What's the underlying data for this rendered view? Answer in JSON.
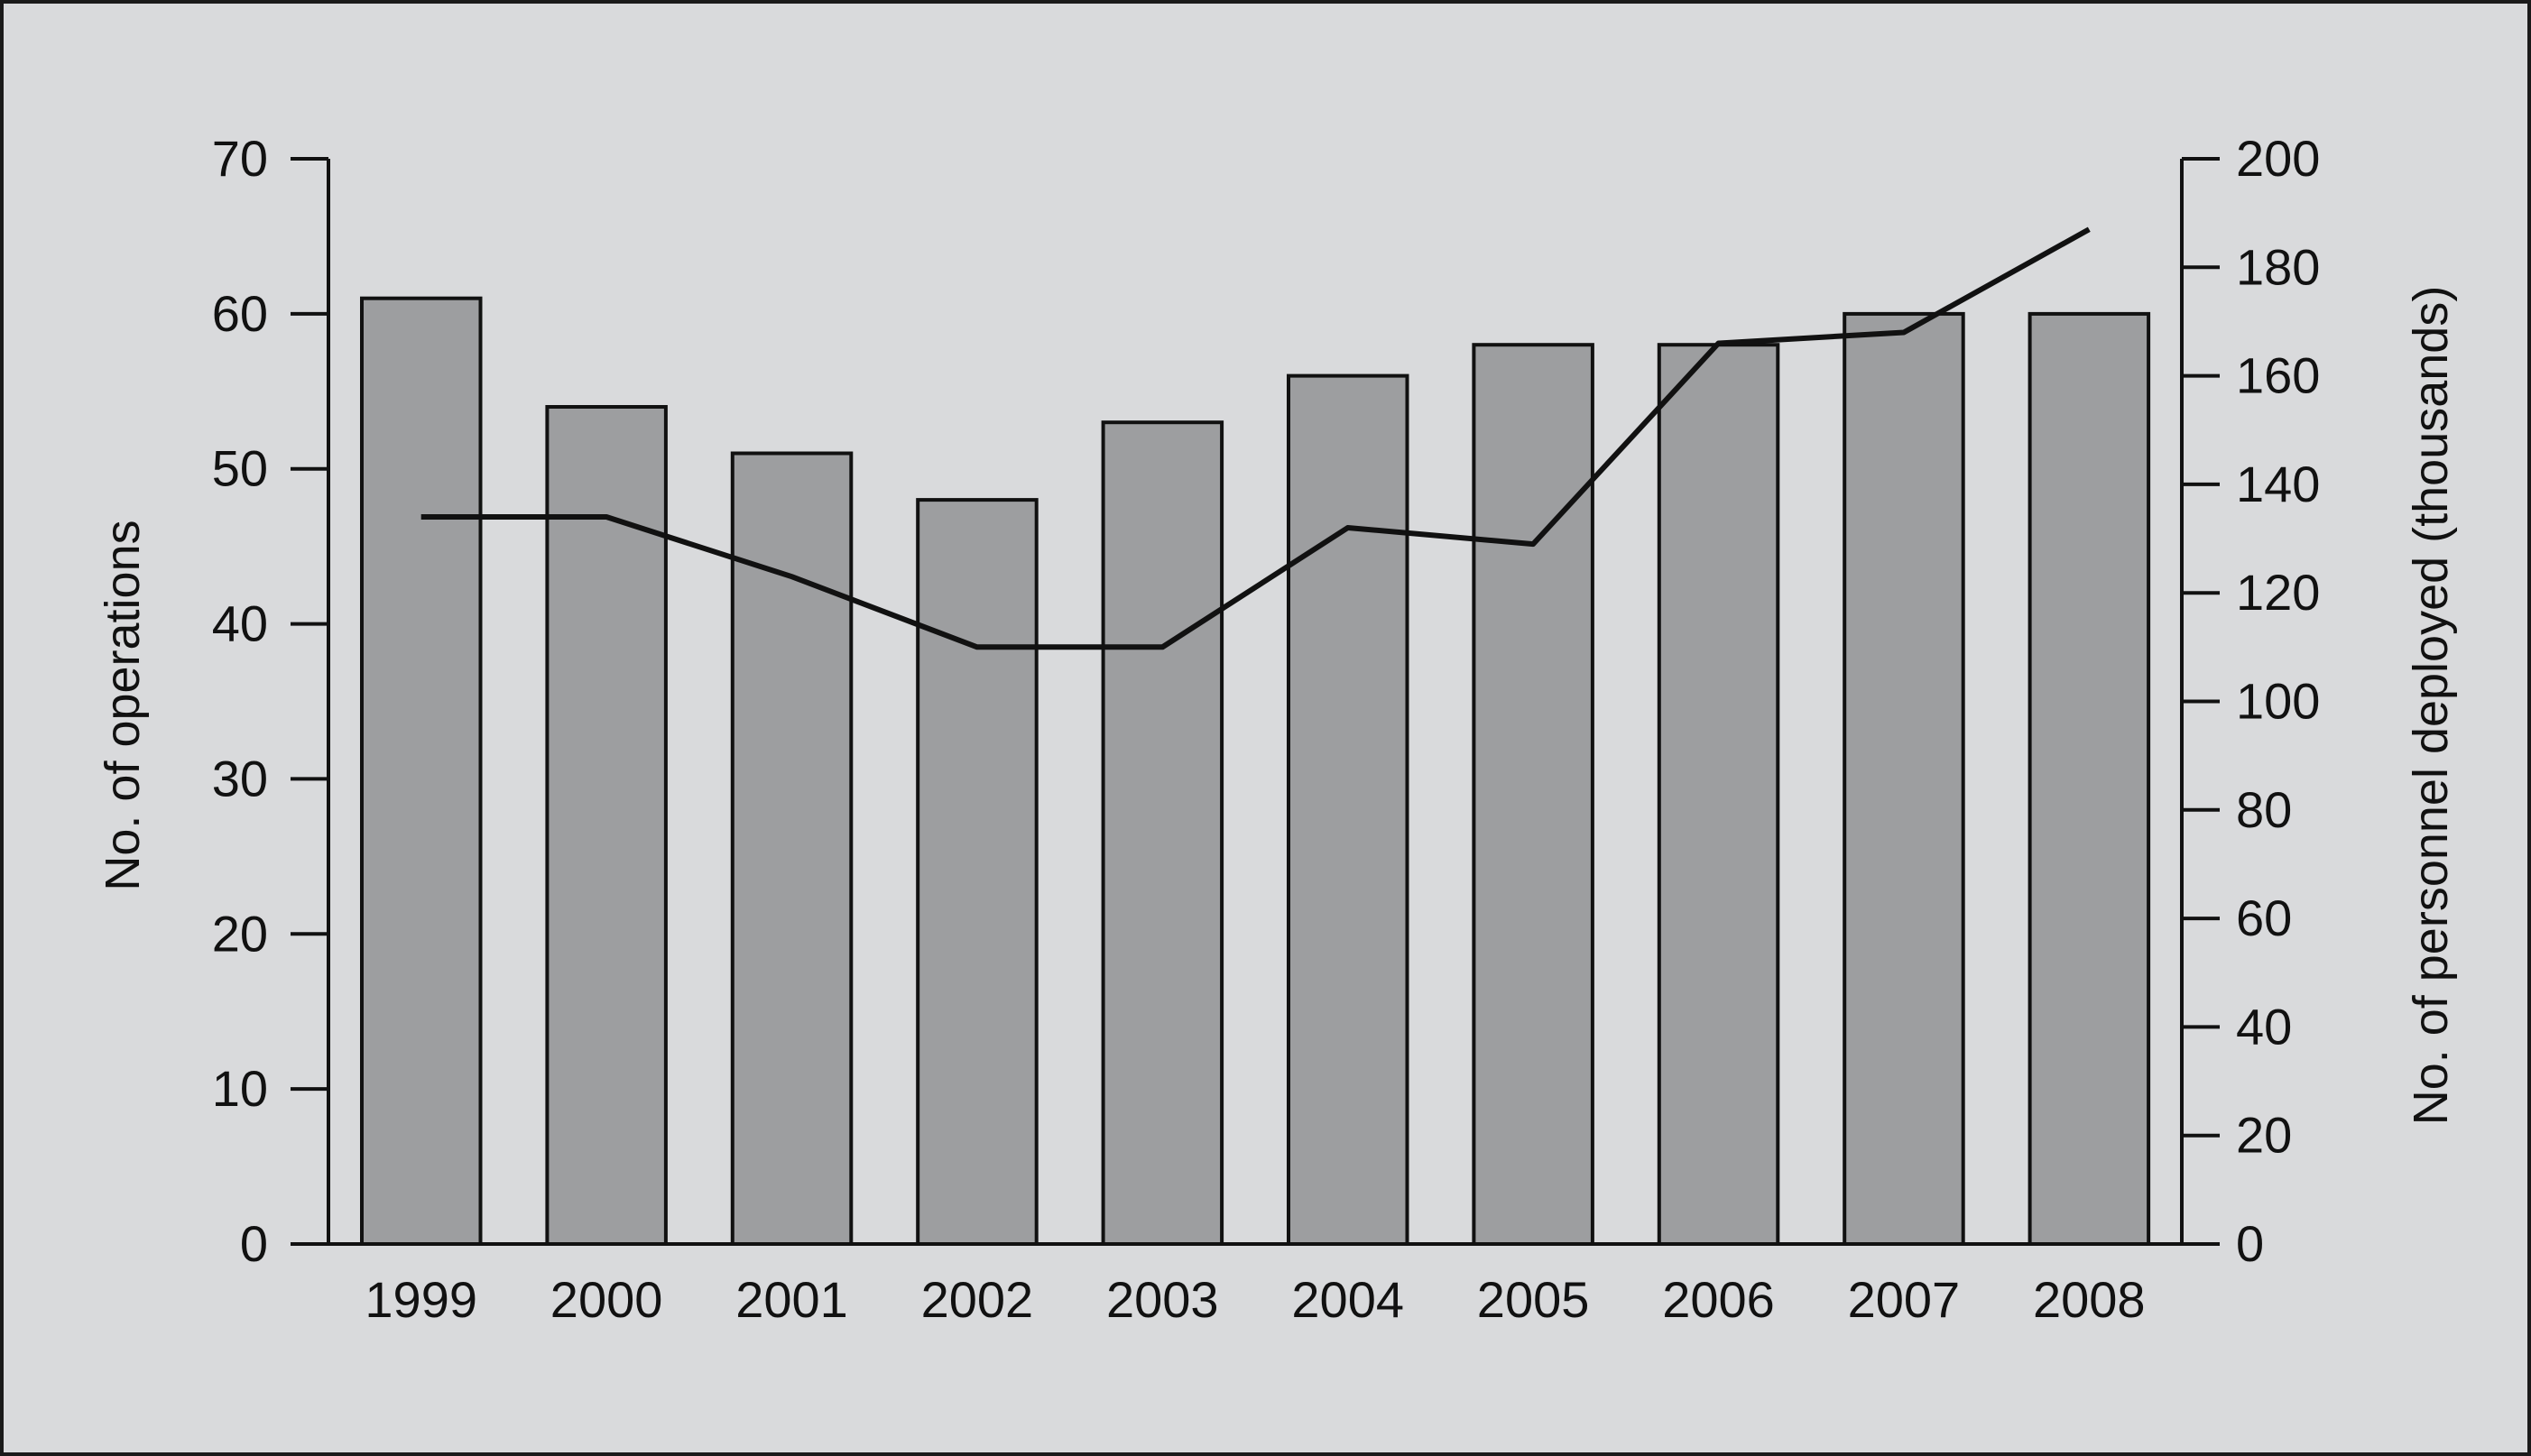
{
  "chart_data": {
    "type": "bar",
    "categories": [
      "1999",
      "2000",
      "2001",
      "2002",
      "2003",
      "2004",
      "2005",
      "2006",
      "2007",
      "2008"
    ],
    "series": [
      {
        "type": "bar",
        "axis": "left",
        "values": [
          61,
          54,
          51,
          48,
          53,
          56,
          58,
          58,
          60,
          60
        ]
      },
      {
        "type": "line",
        "axis": "right",
        "values": [
          134,
          134,
          123,
          110,
          110,
          132,
          129,
          166,
          168,
          187
        ]
      }
    ],
    "ylabel": "No. of operations",
    "y2label": "No. of personnel deployed (thousands)",
    "ylim": [
      0,
      70
    ],
    "yticks": [
      "0",
      "10",
      "20",
      "30",
      "40",
      "50",
      "60",
      "70"
    ],
    "y2lim": [
      0,
      200
    ],
    "y2ticks": [
      "0",
      "20",
      "40",
      "60",
      "80",
      "100",
      "120",
      "140",
      "160",
      "180",
      "200"
    ],
    "grid": false,
    "colors": {
      "bar_fill": "#9d9ea0",
      "bar_stroke": "#111111",
      "line": "#111111",
      "background": "#d9dadc"
    }
  }
}
